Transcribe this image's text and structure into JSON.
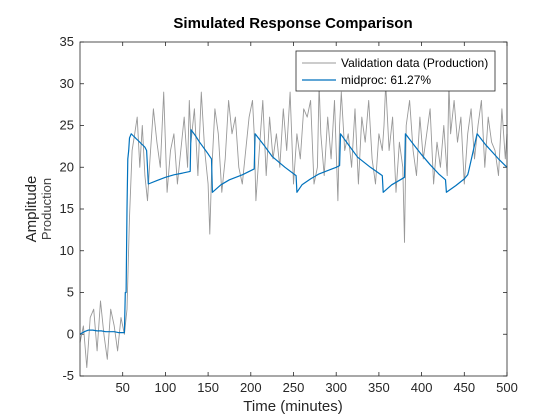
{
  "chart_data": {
    "type": "line",
    "title": "Simulated Response Comparison",
    "xlabel": "Time (minutes)",
    "ylabel": "Amplitude",
    "ylabel_sub": "Production",
    "xlim": [
      0,
      500
    ],
    "ylim": [
      -5,
      35
    ],
    "xticks": [
      50,
      100,
      150,
      200,
      250,
      300,
      350,
      400,
      450,
      500
    ],
    "yticks": [
      -5,
      0,
      5,
      10,
      15,
      20,
      25,
      30,
      35
    ],
    "grid": false,
    "legend_position": "top-right",
    "series": [
      {
        "name": "Validation data (Production)",
        "color": "#999999",
        "x": [
          0,
          4,
          8,
          12,
          16,
          20,
          24,
          28,
          32,
          36,
          40,
          44,
          48,
          52,
          55,
          58,
          61,
          64,
          67,
          70,
          73,
          76,
          79,
          82,
          86,
          90,
          94,
          98,
          102,
          106,
          110,
          114,
          118,
          122,
          126,
          128,
          130,
          134,
          138,
          142,
          146,
          150,
          152,
          154,
          158,
          162,
          166,
          170,
          174,
          178,
          182,
          186,
          190,
          194,
          198,
          202,
          204,
          206,
          210,
          214,
          218,
          222,
          226,
          230,
          234,
          238,
          242,
          246,
          250,
          254,
          258,
          262,
          266,
          270,
          274,
          278,
          280,
          282,
          286,
          290,
          294,
          298,
          302,
          304,
          306,
          310,
          314,
          318,
          322,
          326,
          330,
          334,
          338,
          342,
          346,
          350,
          354,
          356,
          358,
          362,
          366,
          370,
          374,
          378,
          380,
          382,
          386,
          390,
          394,
          398,
          402,
          406,
          410,
          414,
          418,
          422,
          426,
          430,
          432,
          434,
          438,
          442,
          446,
          450,
          454,
          458,
          462,
          466,
          470,
          474,
          478,
          482,
          486,
          490,
          494,
          498,
          500
        ],
        "values": [
          -1,
          1,
          -4,
          2,
          3,
          -2,
          4,
          0,
          -3,
          3,
          1,
          -2,
          2,
          0,
          3,
          14,
          22,
          24,
          26,
          20,
          25,
          19,
          16,
          21,
          27,
          23,
          20,
          29,
          17,
          22,
          24,
          18,
          22,
          26,
          20,
          28,
          23,
          27,
          19,
          29,
          22,
          18,
          12,
          19,
          27,
          24,
          17,
          21,
          28,
          24,
          26,
          20,
          18,
          22,
          26,
          28,
          24,
          16,
          22,
          28,
          19,
          26,
          21,
          24,
          20,
          27,
          22,
          29,
          18,
          24,
          21,
          27,
          26,
          28,
          18,
          20,
          30,
          24,
          19,
          26,
          21,
          28,
          16,
          25,
          29,
          22,
          24,
          20,
          27,
          18,
          26,
          23,
          28,
          21,
          18,
          24,
          22,
          25,
          30,
          22,
          26,
          17,
          23,
          20,
          11,
          25,
          28,
          22,
          19,
          26,
          21,
          24,
          27,
          18,
          23,
          20,
          25,
          19,
          30,
          24,
          28,
          23,
          26,
          18,
          24,
          27,
          21,
          25,
          28,
          20,
          26,
          23,
          22,
          19,
          27,
          21,
          24
        ]
      },
      {
        "name": "midproc: 61.27%",
        "color": "#0072bd",
        "x": [
          0,
          5,
          10,
          15,
          20,
          25,
          30,
          35,
          40,
          45,
          50,
          52,
          53,
          54,
          55,
          56,
          57,
          58,
          60,
          62,
          64,
          66,
          68,
          70,
          72,
          74,
          76,
          78,
          79,
          80,
          90,
          100,
          110,
          120,
          129,
          130,
          135,
          140,
          150,
          154,
          155,
          165,
          175,
          190,
          204,
          205,
          215,
          225,
          240,
          253,
          254,
          260,
          270,
          280,
          290,
          300,
          304,
          305,
          315,
          325,
          340,
          354,
          355,
          365,
          375,
          380,
          381,
          390,
          400,
          410,
          420,
          428,
          429,
          440,
          450,
          454,
          455,
          465,
          475,
          490,
          500
        ],
        "values": [
          0,
          0.3,
          0.5,
          0.5,
          0.4,
          0.4,
          0.3,
          0.3,
          0.3,
          0.2,
          0.2,
          0.2,
          5,
          5,
          15,
          21,
          22,
          23.5,
          24,
          23.8,
          23.6,
          23.4,
          23.2,
          23,
          22.8,
          22.6,
          22.4,
          22,
          20,
          18,
          18.4,
          18.8,
          19.1,
          19.3,
          19.5,
          24.5,
          23.8,
          23,
          21.6,
          21,
          17,
          17.9,
          18.5,
          19.1,
          19.8,
          24,
          22.7,
          21.3,
          20,
          19,
          17,
          17.9,
          18.6,
          19.2,
          19.6,
          20,
          20.2,
          24,
          22.6,
          21.2,
          20,
          19,
          17,
          17.9,
          18.5,
          18.8,
          24,
          22.8,
          21.5,
          20.3,
          19.2,
          18.5,
          17,
          17.8,
          18.6,
          19.1,
          19.5,
          24,
          22.7,
          21,
          20
        ]
      }
    ]
  }
}
